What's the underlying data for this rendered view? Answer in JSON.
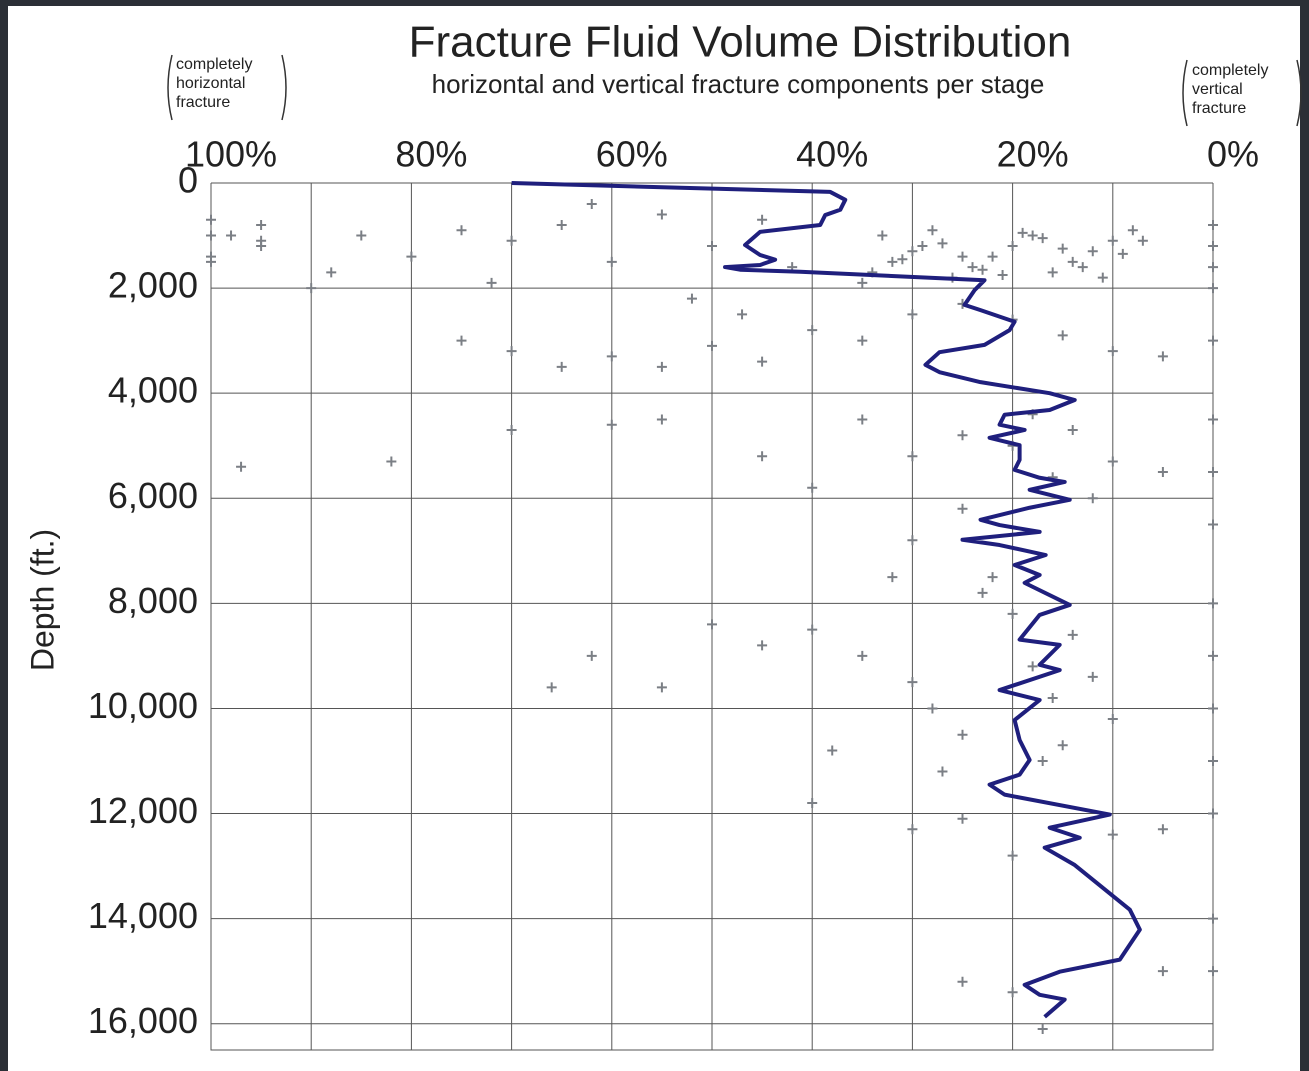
{
  "chart_data": {
    "type": "combo",
    "title": "Fracture Fluid Volume Distribution",
    "subtitle": "horizontal and vertical fracture components per stage",
    "y_label": "Depth (ft.)",
    "annotations": [
      {
        "lines": [
          "completely",
          "horizontal",
          "fracture"
        ]
      },
      {
        "lines": [
          "completely",
          "vertical",
          "fracture"
        ]
      }
    ],
    "xlim": [
      100,
      0
    ],
    "xticks": [
      {
        "value": 100,
        "label": "100%"
      },
      {
        "value": 80,
        "label": "80%"
      },
      {
        "value": 60,
        "label": "60%"
      },
      {
        "value": 40,
        "label": "40%"
      },
      {
        "value": 20,
        "label": "20%"
      },
      {
        "value": 0,
        "label": "0%"
      }
    ],
    "xminor": [
      90,
      70,
      50,
      30,
      10
    ],
    "ylim": [
      0,
      16500
    ],
    "yticks": [
      0,
      {
        "value": 2000,
        "label": "2,000"
      },
      {
        "value": 4000,
        "label": "4,000"
      },
      {
        "value": 6000,
        "label": "6,000"
      },
      {
        "value": 8000,
        "label": "8,000"
      },
      {
        "value": 10000,
        "label": "10,000"
      },
      {
        "value": 12000,
        "label": "12,000"
      },
      {
        "value": 14000,
        "label": "14,000"
      },
      {
        "value": 16000,
        "label": "16,000"
      }
    ],
    "grid": true,
    "series": [
      {
        "type": "scatter",
        "color": "#7b7f85",
        "x": [
          8,
          10,
          12,
          14,
          16,
          18,
          20,
          22,
          24,
          26,
          28,
          30,
          32,
          34,
          7,
          11,
          15,
          19,
          23,
          27,
          31,
          35,
          9,
          13,
          17,
          21,
          25,
          29,
          33,
          45,
          50,
          55,
          60,
          65,
          70,
          75,
          80,
          85,
          90,
          95,
          100,
          98,
          88,
          72,
          62,
          52,
          47,
          42,
          25,
          20,
          15,
          10,
          30,
          35,
          40,
          5,
          45,
          50,
          55,
          60,
          65,
          70,
          75,
          35,
          30,
          25,
          20,
          18,
          16,
          14,
          12,
          10,
          5,
          40,
          45,
          55,
          60,
          70,
          82,
          97,
          30,
          25,
          22,
          40,
          35,
          30,
          28,
          25,
          20,
          18,
          16,
          15,
          14,
          12,
          10,
          45,
          50,
          55,
          62,
          66,
          32,
          38,
          27,
          17,
          23,
          40,
          30,
          25,
          20,
          10,
          5,
          25,
          20,
          17,
          5,
          0,
          0,
          0,
          0,
          0,
          0,
          0,
          0,
          0,
          0,
          0,
          0,
          0,
          0,
          0,
          100,
          100,
          100,
          95,
          95
        ],
        "values": [
          900,
          1100,
          1300,
          1500,
          1700,
          1000,
          1200,
          1400,
          1600,
          1800,
          900,
          1300,
          1500,
          1700,
          1100,
          1800,
          1250,
          950,
          1650,
          1150,
          1450,
          1900,
          1350,
          1600,
          1050,
          1750,
          1400,
          1200,
          1000,
          700,
          1200,
          600,
          1500,
          800,
          1100,
          900,
          1400,
          1000,
          2000,
          1200,
          1500,
          1000,
          1700,
          1900,
          400,
          2200,
          2500,
          1600,
          2300,
          2600,
          2900,
          3200,
          2500,
          3000,
          2800,
          3300,
          3400,
          3100,
          3500,
          3300,
          3500,
          3200,
          3000,
          4500,
          5200,
          4800,
          5000,
          4400,
          5600,
          4700,
          6000,
          5300,
          5500,
          5800,
          5200,
          4500,
          4600,
          4700,
          5300,
          5400,
          6800,
          6200,
          7500,
          8500,
          9000,
          9500,
          10000,
          10500,
          8200,
          9200,
          9800,
          10700,
          8600,
          9400,
          10200,
          8800,
          8400,
          9600,
          9000,
          9600,
          7500,
          10800,
          11200,
          11000,
          7800,
          11800,
          12300,
          12100,
          12800,
          12400,
          12300,
          15200,
          15400,
          16100,
          15000,
          800,
          1200,
          1600,
          2000,
          3000,
          4500,
          5500,
          6500,
          8000,
          9000,
          10000,
          11000,
          12000,
          14000,
          15000,
          700,
          1000,
          1400,
          800,
          1100
        ]
      },
      {
        "type": "line",
        "color": "#1f1f7d",
        "x": [
          70,
          38.2,
          36.7,
          37.2,
          38.7,
          39.2,
          45.2,
          46.7,
          45.2,
          43.7,
          45.2,
          48.7,
          47.2,
          41.2,
          22.8,
          23.8,
          24.8,
          23.2,
          19.8,
          20.3,
          22.8,
          27.3,
          28.7,
          27.3,
          23.2,
          16.3,
          13.8,
          16.3,
          20.8,
          21.3,
          18.8,
          22.3,
          19.3,
          19.3,
          19.8,
          17.3,
          14.8,
          18.3,
          14.3,
          18.3,
          23.2,
          21.3,
          17.3,
          25,
          21.3,
          16.7,
          19.8,
          17.3,
          18.8,
          14.3,
          17.3,
          19.3,
          15.3,
          17.3,
          15.3,
          21.3,
          17.3,
          19.8,
          19.3,
          18.3,
          19.3,
          22.3,
          20.8,
          10.3,
          16.3,
          13.3,
          16.8,
          13.8,
          8.3,
          7.3,
          9.3,
          15.3,
          18.8,
          17.3,
          14.8,
          16.8
        ],
        "values": [
          0,
          170,
          320,
          510,
          610,
          800,
          930,
          1180,
          1370,
          1460,
          1560,
          1600,
          1650,
          1690,
          1850,
          2040,
          2320,
          2420,
          2640,
          2800,
          3080,
          3220,
          3460,
          3600,
          3790,
          4000,
          4130,
          4320,
          4410,
          4600,
          4700,
          4850,
          4990,
          5270,
          5460,
          5610,
          5690,
          5840,
          6030,
          6180,
          6410,
          6510,
          6640,
          6790,
          6890,
          7080,
          7270,
          7460,
          7610,
          8030,
          8220,
          8690,
          8790,
          9170,
          9270,
          9650,
          9840,
          10220,
          10600,
          10980,
          11260,
          11450,
          11640,
          12020,
          12270,
          12460,
          12650,
          12980,
          13830,
          14210,
          14780,
          15010,
          15260,
          15450,
          15540,
          15870
        ]
      }
    ]
  }
}
